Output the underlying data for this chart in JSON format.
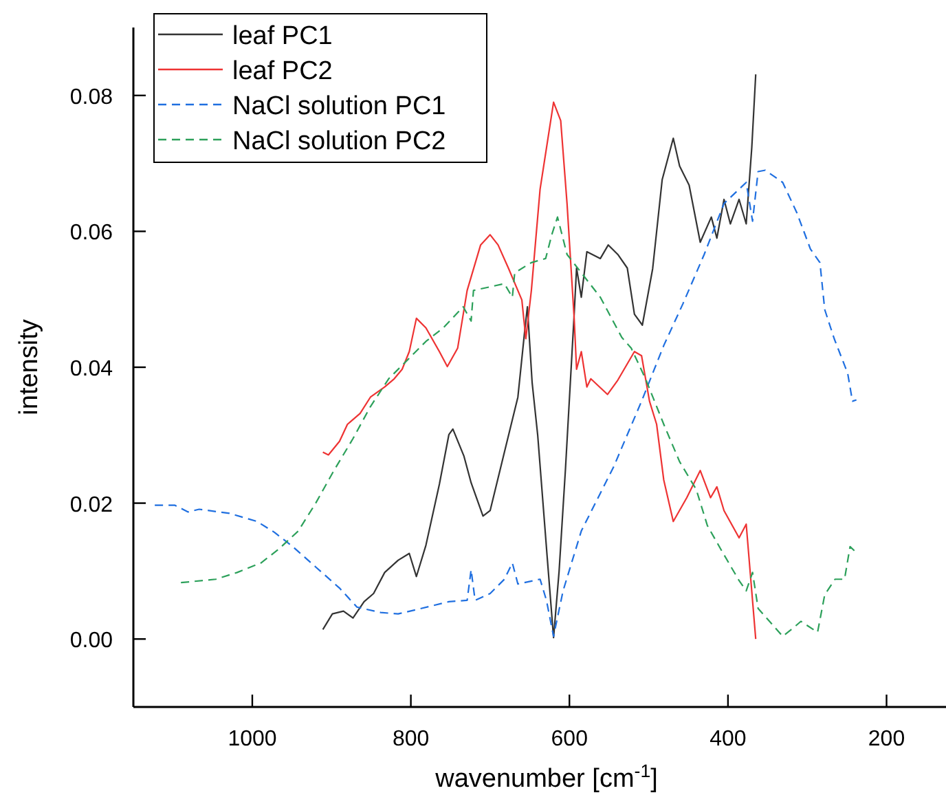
{
  "chart_data": {
    "type": "line",
    "xlabel": "wavenumber [cm$^{-1}$]",
    "ylabel": "intensity",
    "xlim": [
      1150,
      125
    ],
    "xticks": [
      1000,
      800,
      600,
      400,
      200
    ],
    "ylim": [
      -0.01,
      0.09
    ],
    "yticks": [
      {
        "value": 0,
        "label": "0.00"
      },
      {
        "value": 0.02,
        "label": "0.02"
      },
      {
        "value": 0.04,
        "label": "0.04"
      },
      {
        "value": 0.06,
        "label": "0.06"
      },
      {
        "value": 0.08,
        "label": "0.08"
      }
    ],
    "grid": false,
    "legend": "top left",
    "series": [
      {
        "name": "leaf PC1",
        "color": "#333333",
        "line_style": "solid",
        "x": [
          911,
          899,
          885,
          873,
          859,
          847,
          833,
          816,
          802,
          793,
          781,
          764,
          752,
          747,
          733,
          724,
          709,
          700,
          682,
          665,
          656,
          653,
          647,
          640,
          628,
          620,
          613,
          605,
          594,
          591,
          585,
          578,
          561,
          551,
          539,
          527,
          518,
          508,
          495,
          483,
          469,
          461,
          449,
          435,
          421,
          414,
          405,
          397,
          386,
          377,
          370,
          365
        ],
        "values": [
          0.0014,
          0.0037,
          0.0041,
          0.0031,
          0.0055,
          0.0067,
          0.0098,
          0.0116,
          0.0126,
          0.0092,
          0.0138,
          0.0228,
          0.0301,
          0.0309,
          0.0269,
          0.023,
          0.0181,
          0.0189,
          0.0275,
          0.0356,
          0.0458,
          0.0489,
          0.0377,
          0.03,
          0.012,
          0.0002,
          0.01,
          0.025,
          0.0478,
          0.0546,
          0.0503,
          0.057,
          0.056,
          0.058,
          0.0566,
          0.0546,
          0.0478,
          0.0462,
          0.0545,
          0.0676,
          0.0737,
          0.0696,
          0.0668,
          0.0584,
          0.0621,
          0.059,
          0.0647,
          0.0611,
          0.0647,
          0.0611,
          0.0723,
          0.0831
        ]
      },
      {
        "name": "leaf PC2",
        "color": "#ee3333",
        "line_style": "solid",
        "x": [
          911,
          904,
          890,
          880,
          864,
          851,
          833,
          821,
          811,
          802,
          793,
          781,
          764,
          754,
          741,
          729,
          712,
          700,
          690,
          677,
          660,
          655,
          648,
          637,
          620,
          611,
          603,
          594,
          591,
          585,
          578,
          573,
          552,
          539,
          518,
          509,
          499,
          490,
          481,
          469,
          452,
          435,
          422,
          414,
          405,
          386,
          377,
          365
        ],
        "values": [
          0.0275,
          0.0271,
          0.0291,
          0.0316,
          0.0332,
          0.0356,
          0.0371,
          0.0383,
          0.0397,
          0.0423,
          0.0472,
          0.0458,
          0.0423,
          0.0401,
          0.0428,
          0.0513,
          0.058,
          0.0595,
          0.058,
          0.0546,
          0.0499,
          0.0442,
          0.0513,
          0.0662,
          0.079,
          0.0763,
          0.0641,
          0.0472,
          0.0397,
          0.0423,
          0.0371,
          0.0383,
          0.036,
          0.0381,
          0.0423,
          0.0417,
          0.035,
          0.0316,
          0.0234,
          0.0173,
          0.0208,
          0.0248,
          0.0208,
          0.0224,
          0.0189,
          0.0149,
          0.0169,
          0
        ]
      },
      {
        "name": "NaCl solution PC1",
        "color": "#1f6fe0",
        "line_style": "dashed",
        "x": [
          1123,
          1098,
          1081,
          1067,
          1029,
          994,
          972,
          949,
          920,
          890,
          868,
          838,
          816,
          787,
          752,
          729,
          724,
          719,
          700,
          682,
          672,
          665,
          637,
          629,
          620,
          608,
          585,
          544,
          509,
          481,
          457,
          430,
          405,
          377,
          369,
          362,
          353,
          331,
          313,
          296,
          284,
          278,
          266,
          249,
          243,
          238
        ],
        "values": [
          0.0197,
          0.0197,
          0.0187,
          0.0191,
          0.0185,
          0.0173,
          0.0157,
          0.0136,
          0.0106,
          0.0075,
          0.0047,
          0.0039,
          0.0037,
          0.0045,
          0.0055,
          0.0057,
          0.0102,
          0.0057,
          0.0067,
          0.0088,
          0.0112,
          0.0081,
          0.0088,
          0.0057,
          0.0004,
          0.0071,
          0.0159,
          0.0254,
          0.035,
          0.0432,
          0.0493,
          0.0566,
          0.0641,
          0.0672,
          0.0615,
          0.0688,
          0.069,
          0.0672,
          0.0627,
          0.0574,
          0.0554,
          0.0485,
          0.0442,
          0.0391,
          0.035,
          0.0352
        ]
      },
      {
        "name": "NaCl solution PC2",
        "color": "#2ca05a",
        "line_style": "dashed",
        "x": [
          1090,
          1046,
          1019,
          989,
          967,
          942,
          920,
          897,
          873,
          851,
          828,
          804,
          781,
          759,
          734,
          724,
          721,
          682,
          672,
          669,
          648,
          630,
          622,
          615,
          603,
          585,
          561,
          534,
          522,
          504,
          481,
          461,
          440,
          426,
          409,
          386,
          377,
          369,
          362,
          343,
          331,
          318,
          308,
          287,
          278,
          265,
          253,
          246,
          237
        ],
        "values": [
          0.0083,
          0.0088,
          0.0098,
          0.0112,
          0.0132,
          0.0159,
          0.02,
          0.0248,
          0.0295,
          0.0342,
          0.0383,
          0.0411,
          0.0438,
          0.0458,
          0.0489,
          0.0468,
          0.0513,
          0.0523,
          0.0503,
          0.0539,
          0.0554,
          0.056,
          0.0596,
          0.0621,
          0.0566,
          0.0539,
          0.0503,
          0.0444,
          0.0428,
          0.0383,
          0.0316,
          0.0261,
          0.022,
          0.0167,
          0.0132,
          0.0086,
          0.0071,
          0.0098,
          0.0045,
          0.002,
          0.0004,
          0.0016,
          0.0026,
          0.001,
          0.0065,
          0.0088,
          0.0088,
          0.0136,
          0.0126
        ]
      }
    ]
  }
}
